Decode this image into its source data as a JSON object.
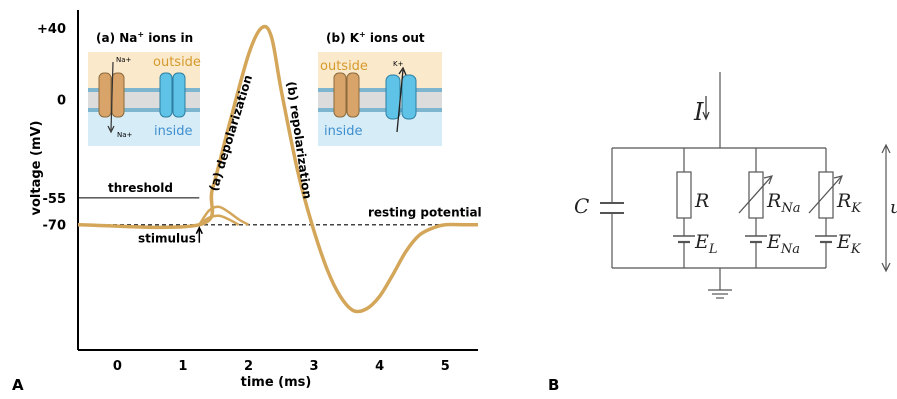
{
  "panel_a": {
    "label": "A",
    "y_axis_label": "voltage (mV)",
    "x_axis_label": "time (ms)",
    "y_ticks": [
      {
        "label": "+40",
        "value": 40
      },
      {
        "label": "0",
        "value": 0
      },
      {
        "label": "-55",
        "value": -55
      },
      {
        "label": "-70",
        "value": -70
      }
    ],
    "x_ticks": [
      {
        "label": "0",
        "value": 0
      },
      {
        "label": "1",
        "value": 1
      },
      {
        "label": "2",
        "value": 2
      },
      {
        "label": "3",
        "value": 3
      },
      {
        "label": "4",
        "value": 4
      },
      {
        "label": "5",
        "value": 5
      }
    ],
    "annotations": {
      "threshold": "threshold",
      "stimulus": "stimulus",
      "resting_potential": "resting potential",
      "depolarization": "(a) depolarization",
      "repolarization": "(b) repolarization"
    },
    "inset_a": {
      "title_prefix": "(a)  Na",
      "title_sup": "+",
      "title_suffix": " ions in",
      "outside": "outside",
      "inside": "inside",
      "ion_top": "Na+",
      "ion_bottom": "Na+"
    },
    "inset_b": {
      "title_prefix": "(b) K",
      "title_sup": "+",
      "title_suffix": " ions out",
      "outside": "outside",
      "inside": "inside",
      "ion_top": "K+"
    },
    "colors": {
      "curve": "#d4a65a",
      "outside_band": "#fbe9cc",
      "inside_band": "#d6ecf7",
      "membrane": "#7fb6cf",
      "na_channel": "#d9a46a",
      "k_channel": "#5ec3e6",
      "outside_text": "#d49a2c",
      "inside_text": "#3f8fd0"
    }
  },
  "chart_data": {
    "type": "line",
    "xlabel": "time (ms)",
    "ylabel": "voltage (mV)",
    "xlim": [
      -0.6,
      5.5
    ],
    "ylim": [
      -140,
      50
    ],
    "series": [
      {
        "x": [
          -0.6,
          1.25,
          1.45,
          1.7,
          2.0,
          2.2,
          2.35,
          2.5,
          2.75,
          2.97,
          3.2,
          3.4,
          3.6,
          3.8,
          4.0,
          4.2,
          4.4,
          4.6,
          4.8,
          5.0,
          5.3,
          5.5
        ],
        "y": [
          -70,
          -70,
          -50,
          -15,
          25,
          40,
          35,
          5,
          -40,
          -70,
          -95,
          -110,
          -118,
          -117,
          -110,
          -98,
          -85,
          -76,
          -72,
          -70,
          -70,
          -70
        ]
      },
      {
        "x": [
          1.25,
          1.4,
          1.55,
          1.7,
          1.85,
          2.0
        ],
        "y": [
          -70,
          -62,
          -60,
          -63,
          -67,
          -70
        ]
      },
      {
        "x": [
          1.25,
          1.4,
          1.55,
          1.7,
          1.85
        ],
        "y": [
          -70,
          -66,
          -65,
          -67,
          -70
        ]
      }
    ],
    "reference_lines": [
      {
        "label": "threshold",
        "y": -55,
        "style": "solid"
      },
      {
        "label": "resting potential",
        "y": -70,
        "style": "dashed"
      }
    ],
    "stimulus_at_ms": 1.25
  },
  "panel_b": {
    "label": "B",
    "current_label": "I",
    "capacitor_label": "C",
    "branches": [
      {
        "resistor": "R",
        "resistor_sub": "",
        "source": "E",
        "source_sub": "L",
        "variable": false
      },
      {
        "resistor": "R",
        "resistor_sub": "Na",
        "source": "E",
        "source_sub": "Na",
        "variable": true
      },
      {
        "resistor": "R",
        "resistor_sub": "K",
        "source": "E",
        "source_sub": "K",
        "variable": true
      }
    ],
    "voltage_label": "u"
  }
}
